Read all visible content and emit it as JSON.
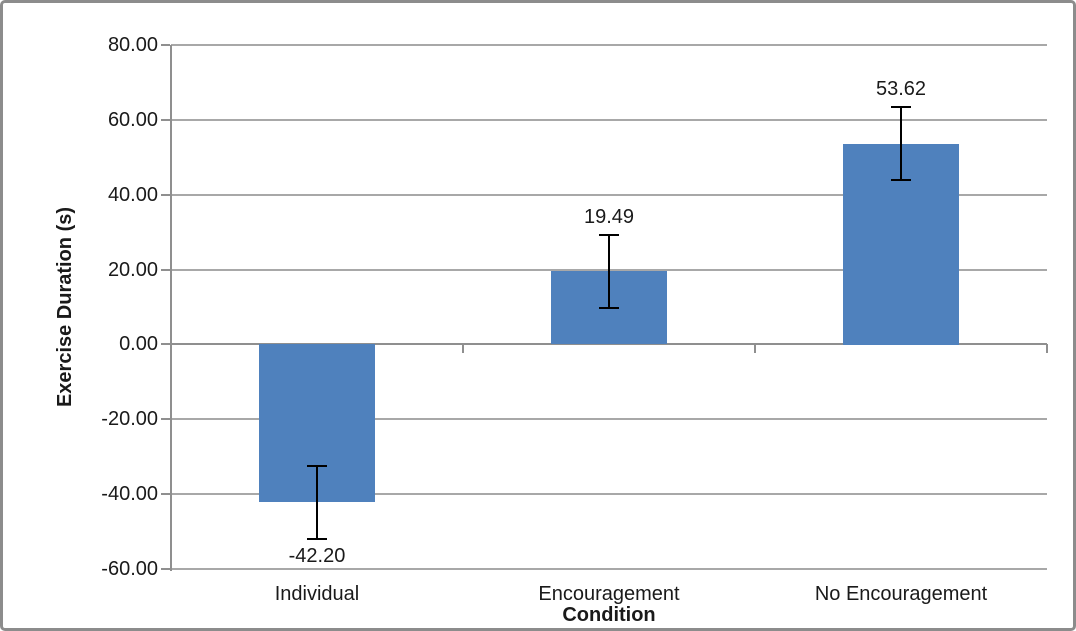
{
  "chart_data": {
    "type": "bar",
    "title": "",
    "xlabel": "Condition",
    "ylabel": "Exercise Duration (s)",
    "categories": [
      "Individual",
      "Encouragement",
      "No Encouragement"
    ],
    "values": [
      -42.2,
      19.49,
      53.62
    ],
    "data_labels": [
      "-42.20",
      "19.49",
      "53.62"
    ],
    "error": 9.8,
    "ylim": [
      -60,
      80
    ],
    "yticks": [
      80,
      60,
      40,
      20,
      0,
      -20,
      -40,
      -60
    ],
    "ytick_labels": [
      "80.00",
      "60.00",
      "40.00",
      "20.00",
      "0.00",
      "-20.00",
      "-40.00",
      "-60.00"
    ],
    "bar_color": "#4f81bd",
    "gridline_color": "#a8a8a8",
    "grid": true,
    "legend": "none"
  }
}
